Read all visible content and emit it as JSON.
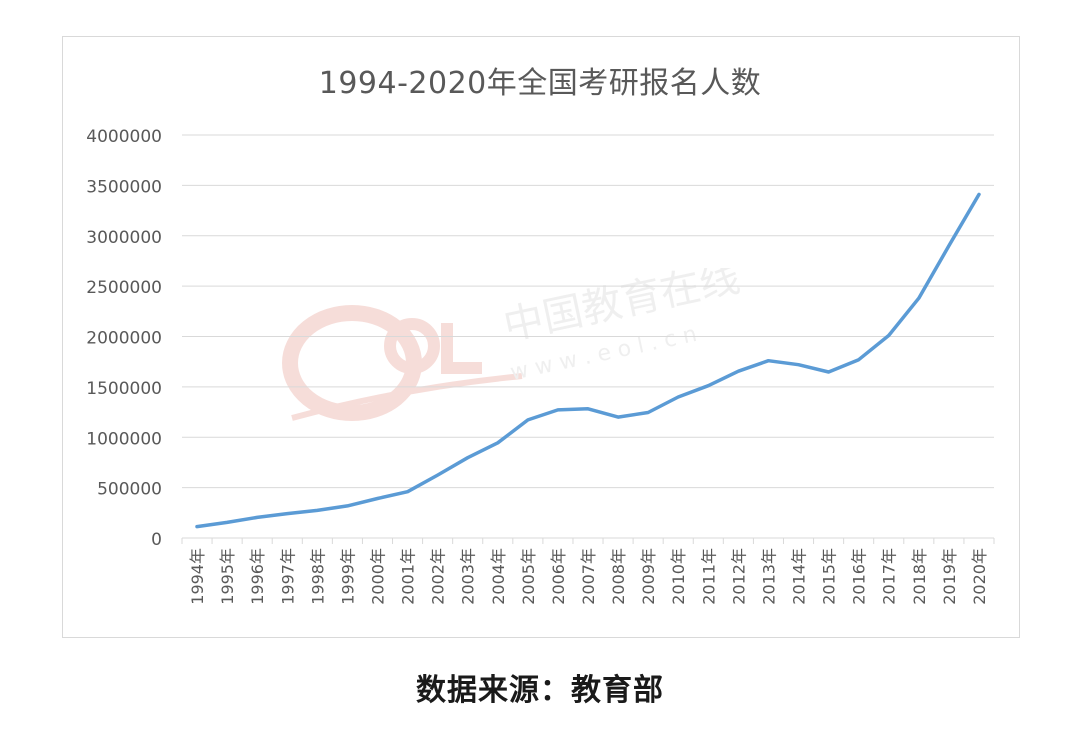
{
  "title": "1994-2020年全国考研报名人数",
  "source": "数据来源：教育部",
  "watermark": {
    "text": "中国教育在线",
    "url": "w w w . e o l . c n",
    "logo": "eol"
  },
  "colors": {
    "line": "#5b9bd5",
    "grid": "#d9d9d9",
    "axis_text": "#595959",
    "watermark": "#e8b0a8"
  },
  "chart_data": {
    "type": "line",
    "title": "1994-2020年全国考研报名人数",
    "xlabel": "",
    "ylabel": "",
    "ylim": [
      0,
      4000000
    ],
    "yticks": [
      0,
      500000,
      1000000,
      1500000,
      2000000,
      2500000,
      3000000,
      3500000,
      4000000
    ],
    "grid": true,
    "legend": "none",
    "categories": [
      "1994年",
      "1995年",
      "1996年",
      "1997年",
      "1998年",
      "1999年",
      "2000年",
      "2001年",
      "2002年",
      "2003年",
      "2004年",
      "2005年",
      "2006年",
      "2007年",
      "2008年",
      "2009年",
      "2010年",
      "2011年",
      "2012年",
      "2013年",
      "2014年",
      "2015年",
      "2016年",
      "2017年",
      "2018年",
      "2019年",
      "2020年"
    ],
    "series": [
      {
        "values": [
          113000,
          155000,
          204000,
          242000,
          274000,
          319000,
          392000,
          460000,
          624000,
          797000,
          945000,
          1172000,
          1271000,
          1282000,
          1200000,
          1246000,
          1400000,
          1512000,
          1656000,
          1760000,
          1720000,
          1648000,
          1770000,
          2010000,
          2380000,
          2900000,
          3410000
        ]
      }
    ]
  }
}
